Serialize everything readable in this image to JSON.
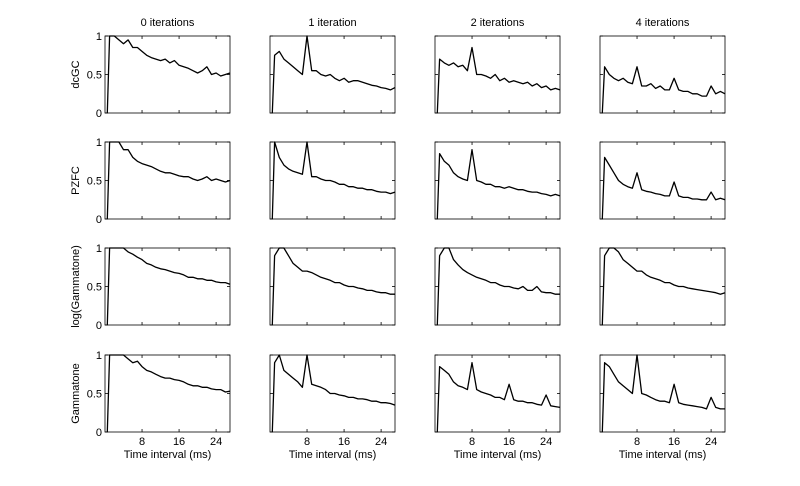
{
  "chart_data": {
    "type": "line",
    "layout": "grid 4x4 small multiples",
    "column_titles": [
      "0 iterations",
      "1 iteration",
      "2 iterations",
      "4 iterations"
    ],
    "row_labels": [
      "dcGC",
      "PZFC",
      "log(Gammatone)",
      "Gammatone"
    ],
    "xlabel": "Time interval (ms)",
    "xlim": [
      0,
      27
    ],
    "ylim": [
      0,
      1
    ],
    "xticks": [
      8,
      16,
      24
    ],
    "yticks": [
      0,
      0.5,
      1
    ],
    "ytick_labels": [
      "0",
      "0.5",
      "1"
    ],
    "grid": false,
    "line_color": "#000000",
    "x": [
      0.5,
      1,
      2,
      3,
      4,
      5,
      6,
      7,
      8,
      9,
      10,
      11,
      12,
      13,
      14,
      15,
      16,
      17,
      18,
      19,
      20,
      21,
      22,
      23,
      24,
      25,
      26,
      27
    ],
    "panels": [
      [
        [
          0,
          1,
          1,
          0.95,
          0.9,
          0.95,
          0.85,
          0.85,
          0.8,
          0.75,
          0.72,
          0.7,
          0.68,
          0.7,
          0.65,
          0.68,
          0.62,
          0.6,
          0.58,
          0.55,
          0.52,
          0.55,
          0.6,
          0.5,
          0.52,
          0.48,
          0.5,
          0.52
        ],
        [
          0,
          0.75,
          0.8,
          0.7,
          0.65,
          0.6,
          0.55,
          0.5,
          1.0,
          0.55,
          0.55,
          0.5,
          0.48,
          0.5,
          0.45,
          0.42,
          0.45,
          0.4,
          0.42,
          0.42,
          0.4,
          0.38,
          0.36,
          0.35,
          0.33,
          0.32,
          0.3,
          0.33
        ],
        [
          0,
          0.7,
          0.65,
          0.62,
          0.65,
          0.6,
          0.62,
          0.55,
          0.85,
          0.5,
          0.5,
          0.48,
          0.45,
          0.5,
          0.42,
          0.45,
          0.4,
          0.42,
          0.4,
          0.38,
          0.4,
          0.35,
          0.38,
          0.33,
          0.35,
          0.3,
          0.32,
          0.3
        ],
        [
          0,
          0.6,
          0.5,
          0.45,
          0.42,
          0.45,
          0.4,
          0.38,
          0.6,
          0.35,
          0.35,
          0.38,
          0.32,
          0.35,
          0.3,
          0.3,
          0.45,
          0.3,
          0.28,
          0.28,
          0.25,
          0.25,
          0.22,
          0.22,
          0.35,
          0.25,
          0.28,
          0.25
        ]
      ],
      [
        [
          0,
          1,
          1,
          1,
          0.9,
          0.9,
          0.8,
          0.75,
          0.72,
          0.7,
          0.68,
          0.65,
          0.62,
          0.6,
          0.6,
          0.58,
          0.56,
          0.55,
          0.55,
          0.52,
          0.5,
          0.52,
          0.55,
          0.5,
          0.52,
          0.5,
          0.48,
          0.5
        ],
        [
          0,
          1,
          0.8,
          0.7,
          0.65,
          0.62,
          0.6,
          0.58,
          1.0,
          0.55,
          0.55,
          0.52,
          0.5,
          0.5,
          0.48,
          0.45,
          0.45,
          0.42,
          0.42,
          0.4,
          0.4,
          0.38,
          0.38,
          0.36,
          0.35,
          0.35,
          0.33,
          0.35
        ],
        [
          0,
          0.85,
          0.75,
          0.7,
          0.6,
          0.55,
          0.52,
          0.5,
          0.9,
          0.5,
          0.48,
          0.45,
          0.45,
          0.42,
          0.42,
          0.4,
          0.42,
          0.4,
          0.38,
          0.38,
          0.36,
          0.35,
          0.35,
          0.33,
          0.32,
          0.3,
          0.32,
          0.3
        ],
        [
          0,
          0.8,
          0.7,
          0.6,
          0.5,
          0.45,
          0.42,
          0.4,
          0.6,
          0.38,
          0.36,
          0.35,
          0.33,
          0.32,
          0.3,
          0.3,
          0.48,
          0.3,
          0.28,
          0.28,
          0.26,
          0.26,
          0.25,
          0.25,
          0.35,
          0.25,
          0.27,
          0.25
        ]
      ],
      [
        [
          0,
          1,
          1,
          1,
          1,
          0.95,
          0.92,
          0.88,
          0.85,
          0.8,
          0.78,
          0.75,
          0.73,
          0.72,
          0.7,
          0.68,
          0.67,
          0.65,
          0.62,
          0.62,
          0.6,
          0.6,
          0.58,
          0.58,
          0.56,
          0.55,
          0.55,
          0.53
        ],
        [
          0,
          0.9,
          1,
          1,
          0.9,
          0.8,
          0.75,
          0.7,
          0.7,
          0.68,
          0.65,
          0.62,
          0.6,
          0.58,
          0.55,
          0.55,
          0.52,
          0.5,
          0.5,
          0.48,
          0.47,
          0.45,
          0.45,
          0.43,
          0.42,
          0.42,
          0.4,
          0.4
        ],
        [
          0,
          0.9,
          1,
          1,
          0.85,
          0.78,
          0.72,
          0.68,
          0.65,
          0.62,
          0.6,
          0.58,
          0.55,
          0.55,
          0.52,
          0.5,
          0.5,
          0.48,
          0.47,
          0.5,
          0.45,
          0.45,
          0.5,
          0.43,
          0.42,
          0.42,
          0.4,
          0.4
        ],
        [
          0,
          0.9,
          1,
          1,
          0.95,
          0.85,
          0.8,
          0.75,
          0.7,
          0.7,
          0.65,
          0.62,
          0.6,
          0.58,
          0.55,
          0.55,
          0.52,
          0.5,
          0.5,
          0.48,
          0.47,
          0.46,
          0.45,
          0.44,
          0.43,
          0.42,
          0.4,
          0.42
        ]
      ],
      [
        [
          0,
          1,
          1,
          1,
          1,
          0.95,
          0.9,
          0.92,
          0.85,
          0.8,
          0.78,
          0.75,
          0.72,
          0.7,
          0.7,
          0.68,
          0.67,
          0.65,
          0.62,
          0.6,
          0.6,
          0.58,
          0.58,
          0.56,
          0.55,
          0.55,
          0.52,
          0.53
        ],
        [
          0,
          0.9,
          1,
          0.8,
          0.75,
          0.7,
          0.65,
          0.58,
          1.0,
          0.62,
          0.6,
          0.58,
          0.55,
          0.5,
          0.5,
          0.48,
          0.47,
          0.45,
          0.45,
          0.43,
          0.43,
          0.42,
          0.4,
          0.4,
          0.38,
          0.38,
          0.37,
          0.35
        ],
        [
          0,
          0.85,
          0.8,
          0.75,
          0.65,
          0.6,
          0.58,
          0.55,
          0.9,
          0.55,
          0.52,
          0.5,
          0.48,
          0.45,
          0.45,
          0.42,
          0.62,
          0.42,
          0.4,
          0.4,
          0.38,
          0.38,
          0.36,
          0.35,
          0.48,
          0.34,
          0.33,
          0.32
        ],
        [
          0,
          0.9,
          0.85,
          0.75,
          0.65,
          0.6,
          0.55,
          0.5,
          1.0,
          0.5,
          0.48,
          0.45,
          0.42,
          0.4,
          0.4,
          0.38,
          0.62,
          0.38,
          0.36,
          0.35,
          0.34,
          0.33,
          0.32,
          0.3,
          0.45,
          0.32,
          0.3,
          0.3
        ]
      ]
    ]
  }
}
